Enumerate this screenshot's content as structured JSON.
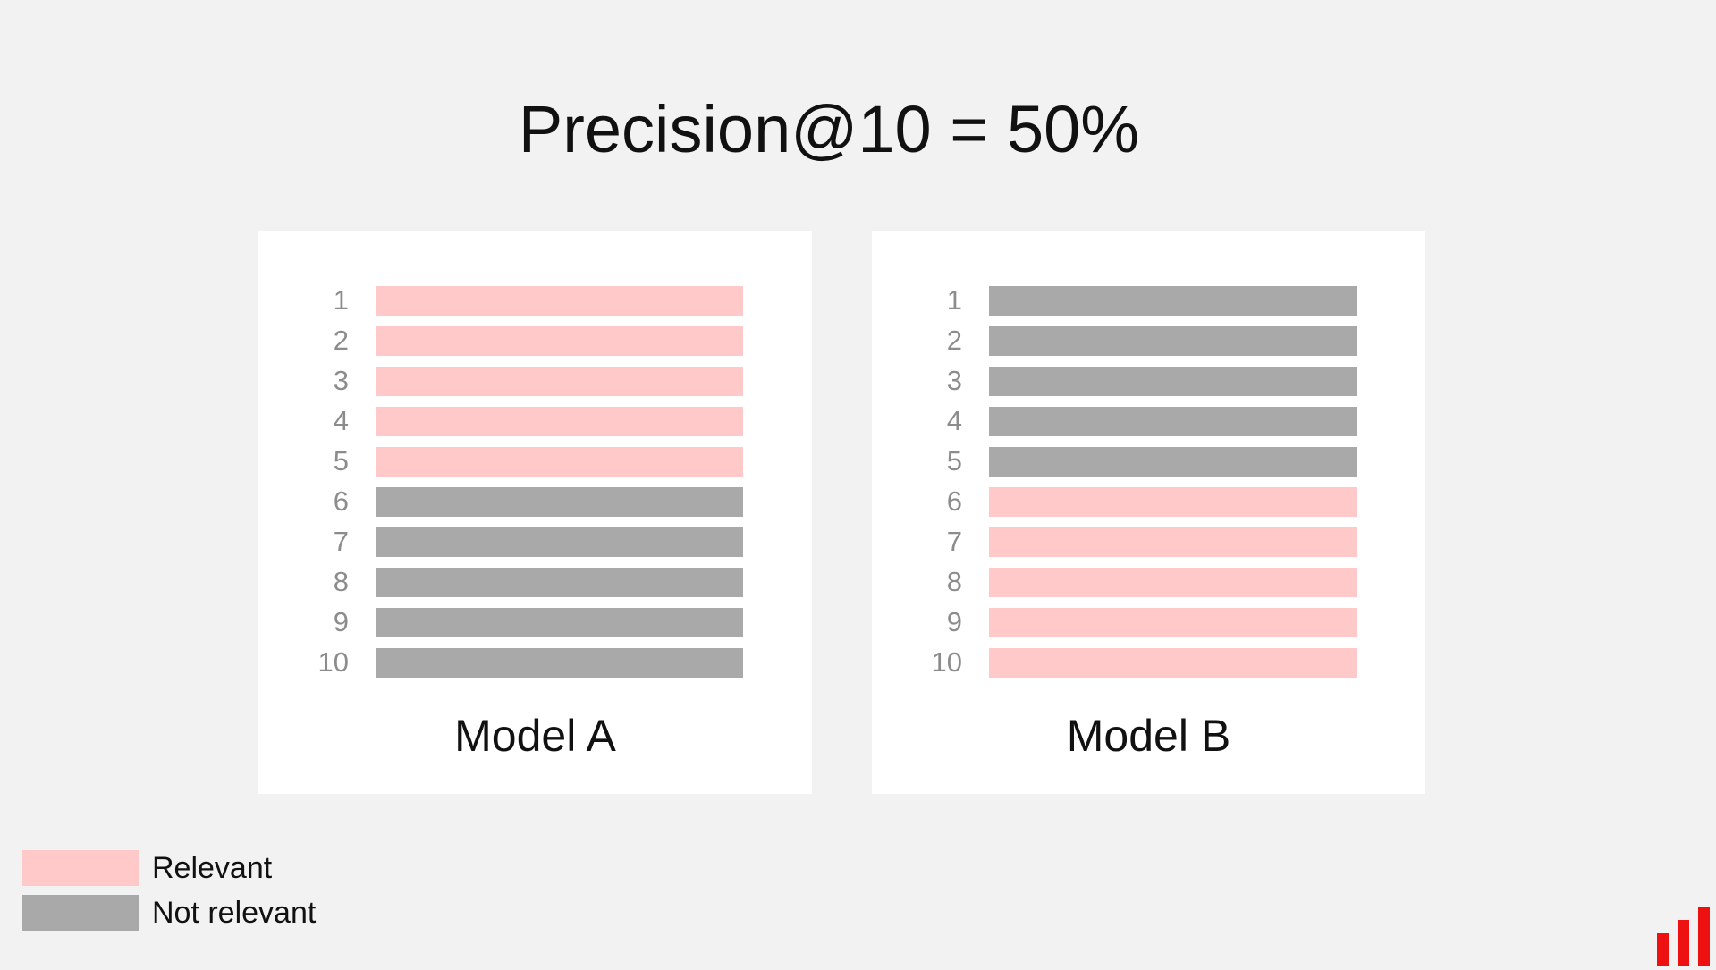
{
  "title": "Precision@10 = 50%",
  "colors": {
    "relevant": "#ffc9c9",
    "not_relevant": "#a9a9aa",
    "background": "#f2f2f2",
    "logo": "#ee1111"
  },
  "models": [
    {
      "label": "Model A",
      "ranks": [
        {
          "rank": "1",
          "status": "relevant"
        },
        {
          "rank": "2",
          "status": "relevant"
        },
        {
          "rank": "3",
          "status": "relevant"
        },
        {
          "rank": "4",
          "status": "relevant"
        },
        {
          "rank": "5",
          "status": "relevant"
        },
        {
          "rank": "6",
          "status": "not_relevant"
        },
        {
          "rank": "7",
          "status": "not_relevant"
        },
        {
          "rank": "8",
          "status": "not_relevant"
        },
        {
          "rank": "9",
          "status": "not_relevant"
        },
        {
          "rank": "10",
          "status": "not_relevant"
        }
      ]
    },
    {
      "label": "Model B",
      "ranks": [
        {
          "rank": "1",
          "status": "not_relevant"
        },
        {
          "rank": "2",
          "status": "not_relevant"
        },
        {
          "rank": "3",
          "status": "not_relevant"
        },
        {
          "rank": "4",
          "status": "not_relevant"
        },
        {
          "rank": "5",
          "status": "not_relevant"
        },
        {
          "rank": "6",
          "status": "relevant"
        },
        {
          "rank": "7",
          "status": "relevant"
        },
        {
          "rank": "8",
          "status": "relevant"
        },
        {
          "rank": "9",
          "status": "relevant"
        },
        {
          "rank": "10",
          "status": "relevant"
        }
      ]
    }
  ],
  "legend": {
    "relevant_label": "Relevant",
    "not_relevant_label": "Not relevant"
  },
  "logo_icon": "bar-chart-logo-icon"
}
